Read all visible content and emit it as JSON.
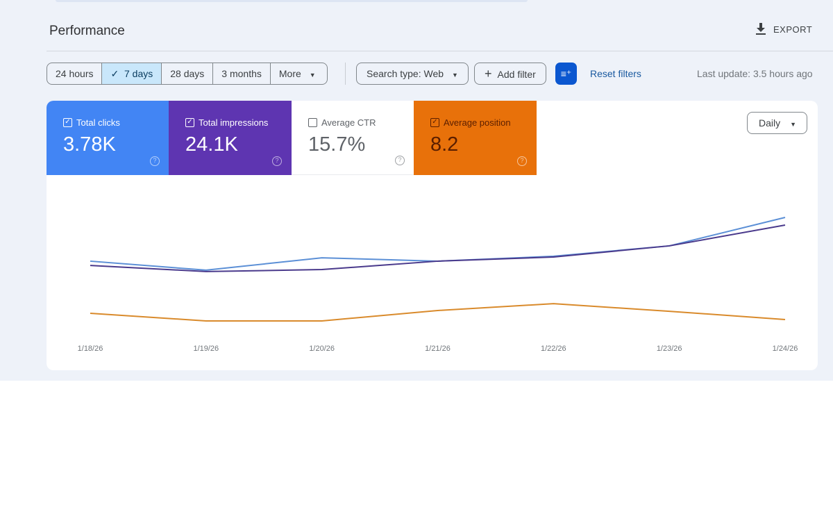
{
  "header": {
    "title": "Performance",
    "export_label": "EXPORT",
    "export_icon": "download-icon"
  },
  "toolbar": {
    "ranges": [
      {
        "label": "24 hours",
        "selected": false
      },
      {
        "label": "7 days",
        "selected": true
      },
      {
        "label": "28 days",
        "selected": false
      },
      {
        "label": "3 months",
        "selected": false
      },
      {
        "label": "More",
        "selected": false
      }
    ],
    "search_type": "Search type: Web",
    "add_filter": "Add filter",
    "reset_filters": "Reset filters",
    "last_update": "Last update: 3.5 hours ago"
  },
  "metrics": [
    {
      "label": "Total clicks",
      "value": "3.78K",
      "checked": true,
      "color": "#4285f4"
    },
    {
      "label": "Total impressions",
      "value": "24.1K",
      "checked": true,
      "color": "#5e35b1"
    },
    {
      "label": "Average CTR",
      "value": "15.7%",
      "checked": false,
      "color": "#ffffff"
    },
    {
      "label": "Average position",
      "value": "8.2",
      "checked": true,
      "color": "#e8710a"
    }
  ],
  "granularity": "Daily",
  "chart_data": {
    "type": "line",
    "x": [
      "1/18/26",
      "1/19/26",
      "1/20/26",
      "1/21/26",
      "1/22/26",
      "1/23/26",
      "1/24/26"
    ],
    "ylim": [
      0,
      100
    ],
    "grid": false,
    "series": [
      {
        "name": "Total clicks",
        "color": "#5b8fd6",
        "values": [
          47.3,
          41.4,
          49.5,
          47.3,
          50.5,
          57.3,
          75.9
        ]
      },
      {
        "name": "Total impressions",
        "color": "#4a3a8c",
        "values": [
          44.5,
          40.5,
          41.8,
          47.3,
          50.0,
          57.3,
          70.9
        ]
      },
      {
        "name": "Average position",
        "color": "#d98a2b",
        "values": [
          13.2,
          8.2,
          8.2,
          15.0,
          19.5,
          14.5,
          9.1
        ]
      }
    ]
  }
}
